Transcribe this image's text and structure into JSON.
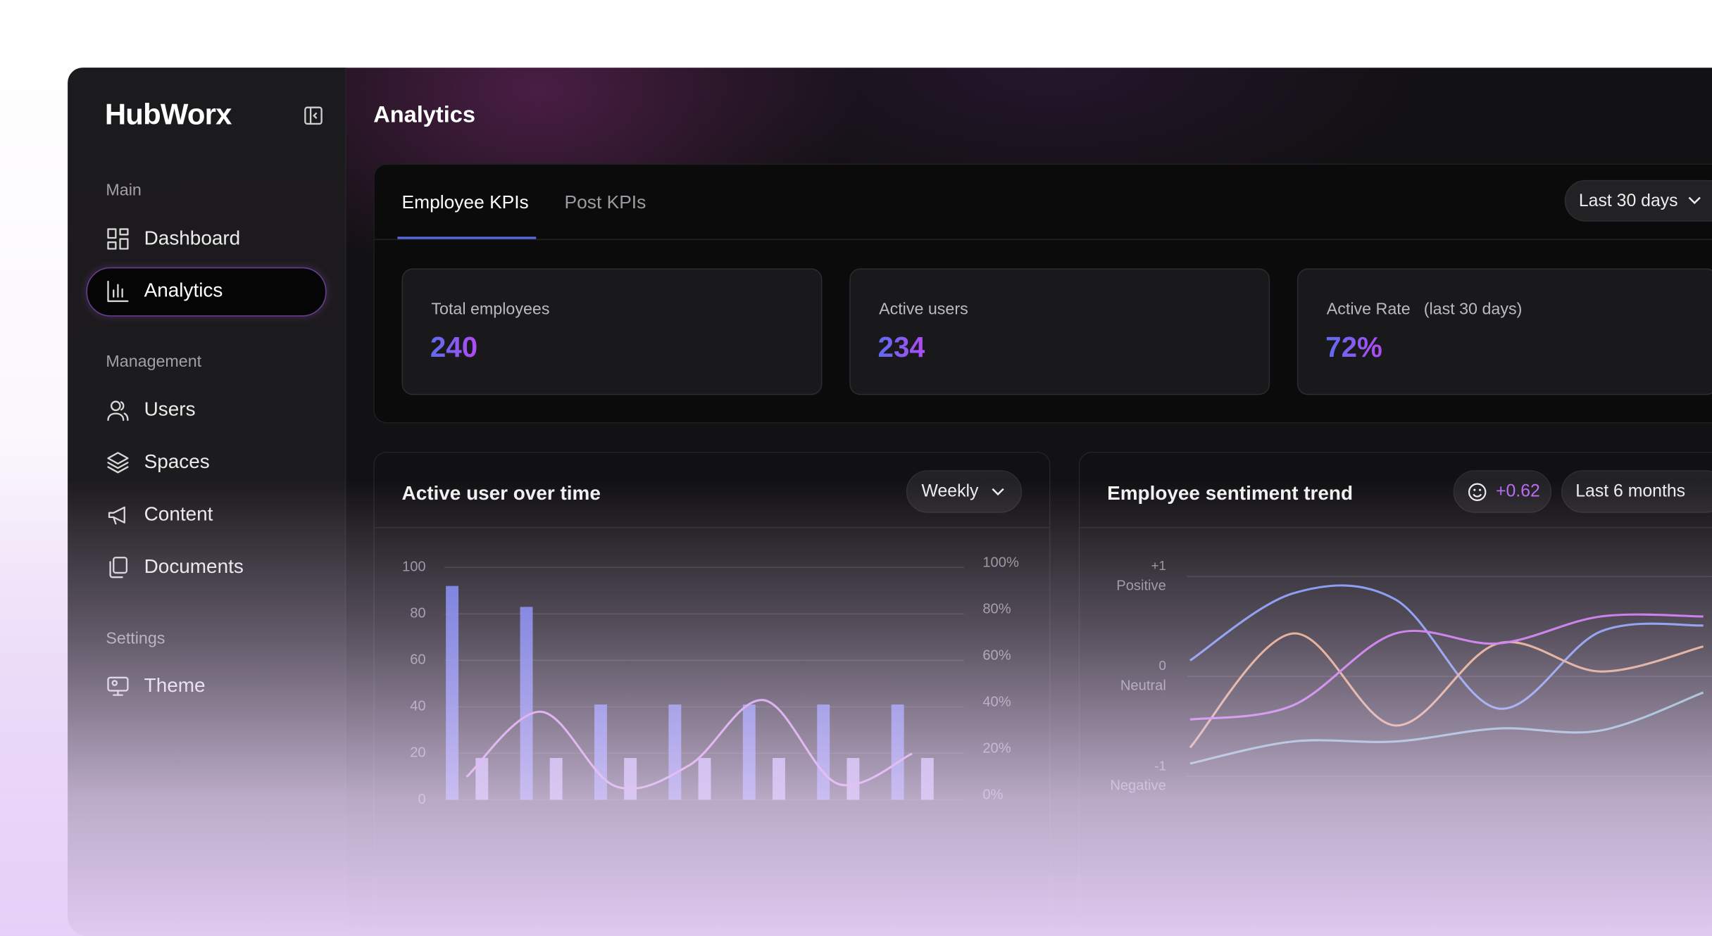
{
  "sidebar": {
    "logo": "HubWorx",
    "sections": [
      {
        "title": "Main",
        "items": [
          {
            "label": "Dashboard",
            "active": false
          },
          {
            "label": "Analytics",
            "active": true
          }
        ]
      },
      {
        "title": "Management",
        "items": [
          {
            "label": "Users",
            "active": false
          },
          {
            "label": "Spaces",
            "active": false
          },
          {
            "label": "Content",
            "active": false
          },
          {
            "label": "Documents",
            "active": false
          }
        ]
      },
      {
        "title": "Settings",
        "items": [
          {
            "label": "Theme",
            "active": false
          }
        ]
      }
    ]
  },
  "header": {
    "title": "Analytics"
  },
  "tabs": {
    "items": [
      "Employee KPIs",
      "Post KPIs"
    ],
    "range": "Last 30 days"
  },
  "kpis": [
    {
      "label": "Total employees",
      "value": "240"
    },
    {
      "label": "Active users",
      "value": "234"
    },
    {
      "label": "Active Rate",
      "note": "(last 30 days)",
      "value": "72%"
    }
  ],
  "chart_data": [
    {
      "type": "bar",
      "title": "Active user over time",
      "interval": "Weekly",
      "categories": [
        null,
        null,
        null,
        null,
        null,
        null,
        null
      ],
      "series": [
        {
          "color": "#6a78ee",
          "values": [
            92,
            83,
            41,
            41,
            41,
            41,
            41
          ]
        },
        {
          "color": "#b9a9f2",
          "values": [
            18,
            18,
            18,
            18,
            18,
            18,
            18
          ]
        },
        {
          "type": "line",
          "axis": "y2",
          "color": "#d48ae8",
          "values": [
            8,
            36,
            4,
            13,
            41,
            5,
            18
          ]
        }
      ],
      "ylim": [
        0,
        100
      ],
      "yticks": [
        0,
        20,
        40,
        60,
        80,
        100
      ],
      "y2lim": [
        0,
        100
      ],
      "y2ticks": [
        {
          "value": 0,
          "label": "0%"
        },
        {
          "value": 20,
          "label": "20%"
        },
        {
          "value": 40,
          "label": "40%"
        },
        {
          "value": 60,
          "label": "60%"
        },
        {
          "value": 80,
          "label": "80%"
        },
        {
          "value": 100,
          "label": "100%"
        }
      ],
      "grid": true
    },
    {
      "type": "line",
      "title": "Employee sentiment trend",
      "badge": "+0.62",
      "range": "Last 6 months",
      "categories": [
        null,
        null,
        null,
        null,
        null,
        null
      ],
      "series": [
        {
          "color": "#6f8df0",
          "values": [
            0.16,
            0.83,
            0.77,
            -0.32,
            0.45,
            0.51
          ]
        },
        {
          "color": "#e3a16e",
          "values": [
            -0.71,
            0.43,
            -0.49,
            0.33,
            0.05,
            0.3
          ]
        },
        {
          "color": "#c25de6",
          "values": [
            -0.43,
            -0.29,
            0.43,
            0.33,
            0.6,
            0.6
          ]
        },
        {
          "color": "#6fb7c0",
          "values": [
            -0.87,
            -0.65,
            -0.65,
            -0.52,
            -0.54,
            -0.16
          ]
        }
      ],
      "ylim": [
        -1.2,
        1.2
      ],
      "yticks": [
        {
          "value": 1,
          "label": "+1"
        },
        0,
        {
          "value": -1,
          "label": "-1"
        }
      ],
      "ytick_captions": [
        "Positive",
        "Neutral",
        "Negative"
      ],
      "grid": true
    }
  ]
}
